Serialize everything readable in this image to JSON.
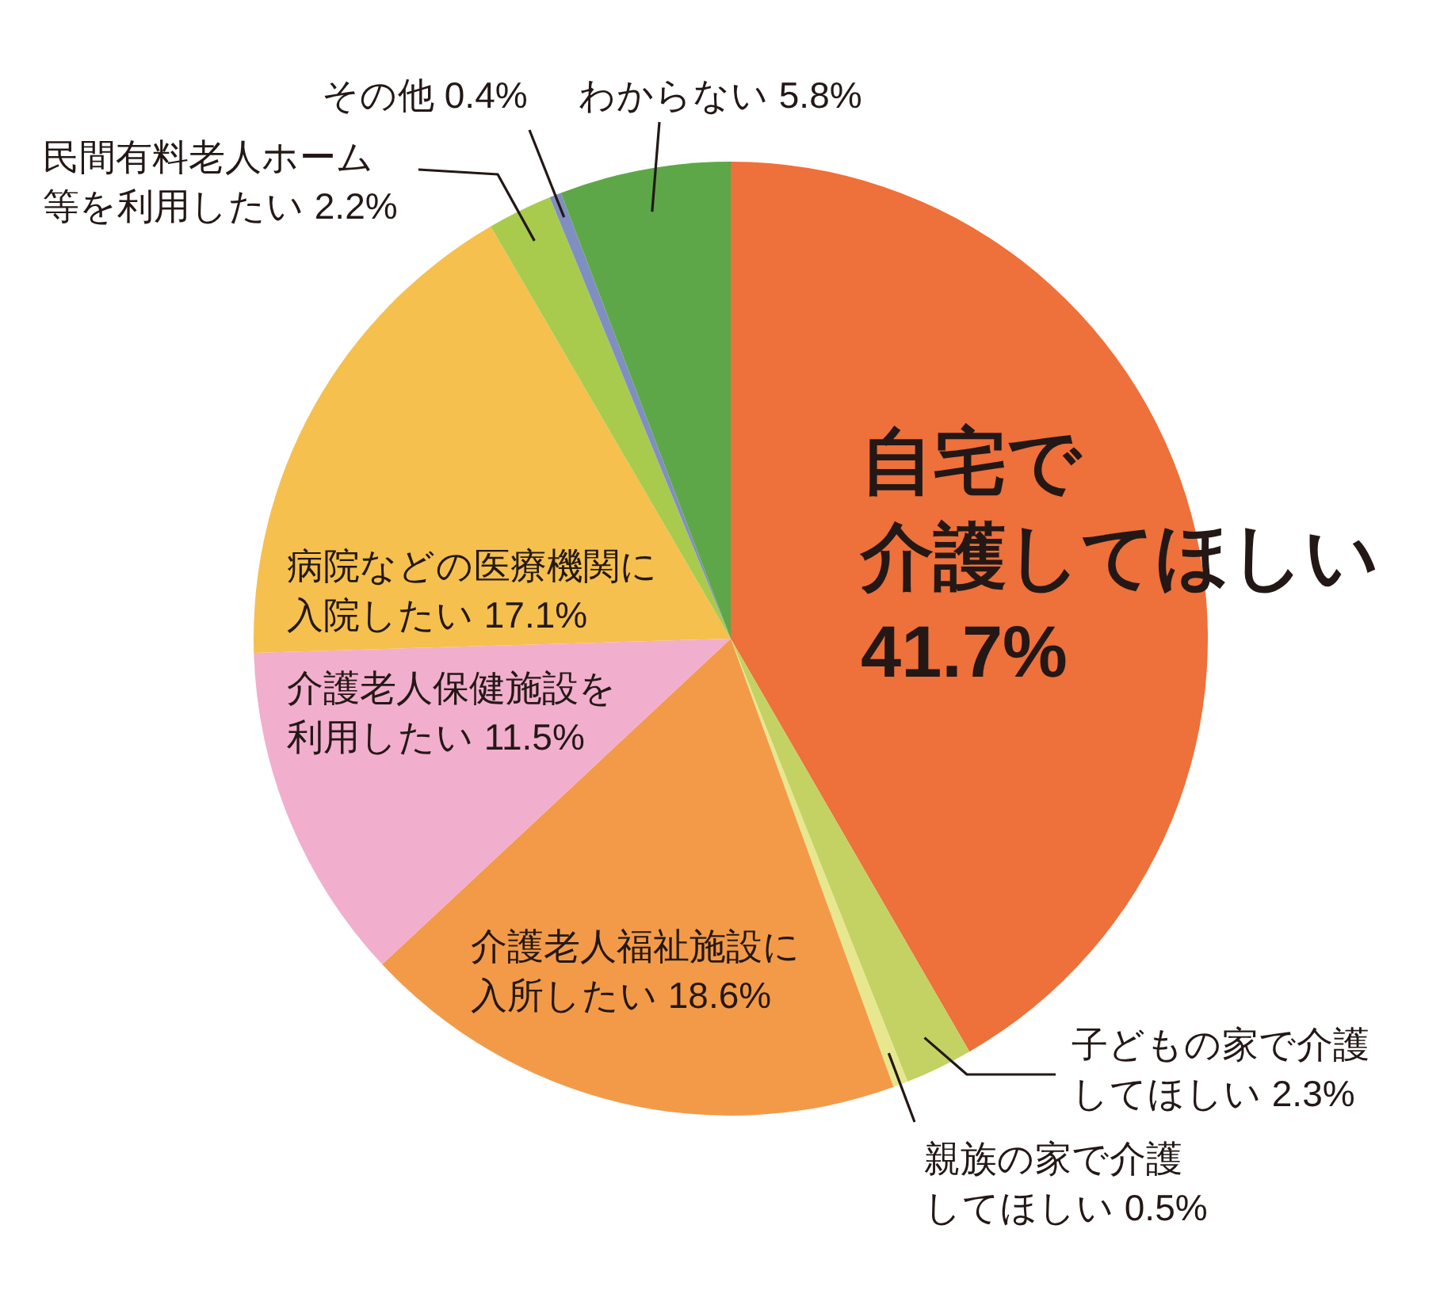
{
  "chart_data": {
    "type": "pie",
    "categories": [
      "自宅で介護してほしい",
      "子どもの家で介護してほしい",
      "親族の家で介護してほしい",
      "介護老人福祉施設に入所したい",
      "介護老人保健施設を利用したい",
      "病院などの医療機関に入院したい",
      "民間有料老人ホーム等を利用したい",
      "その他",
      "わからない"
    ],
    "values": [
      41.7,
      2.3,
      0.5,
      18.6,
      11.5,
      17.1,
      2.2,
      0.4,
      5.8
    ],
    "colors": [
      "#ee703a",
      "#c3d263",
      "#e6e78e",
      "#f39a48",
      "#f2aecd",
      "#f5c04e",
      "#a8cb4e",
      "#7f8fc1",
      "#5ea748"
    ],
    "value_labels": [
      "41.7%",
      "2.3%",
      "0.5%",
      "18.6%",
      "11.5%",
      "17.1%",
      "2.2%",
      "0.4%",
      "5.8%"
    ]
  }
}
